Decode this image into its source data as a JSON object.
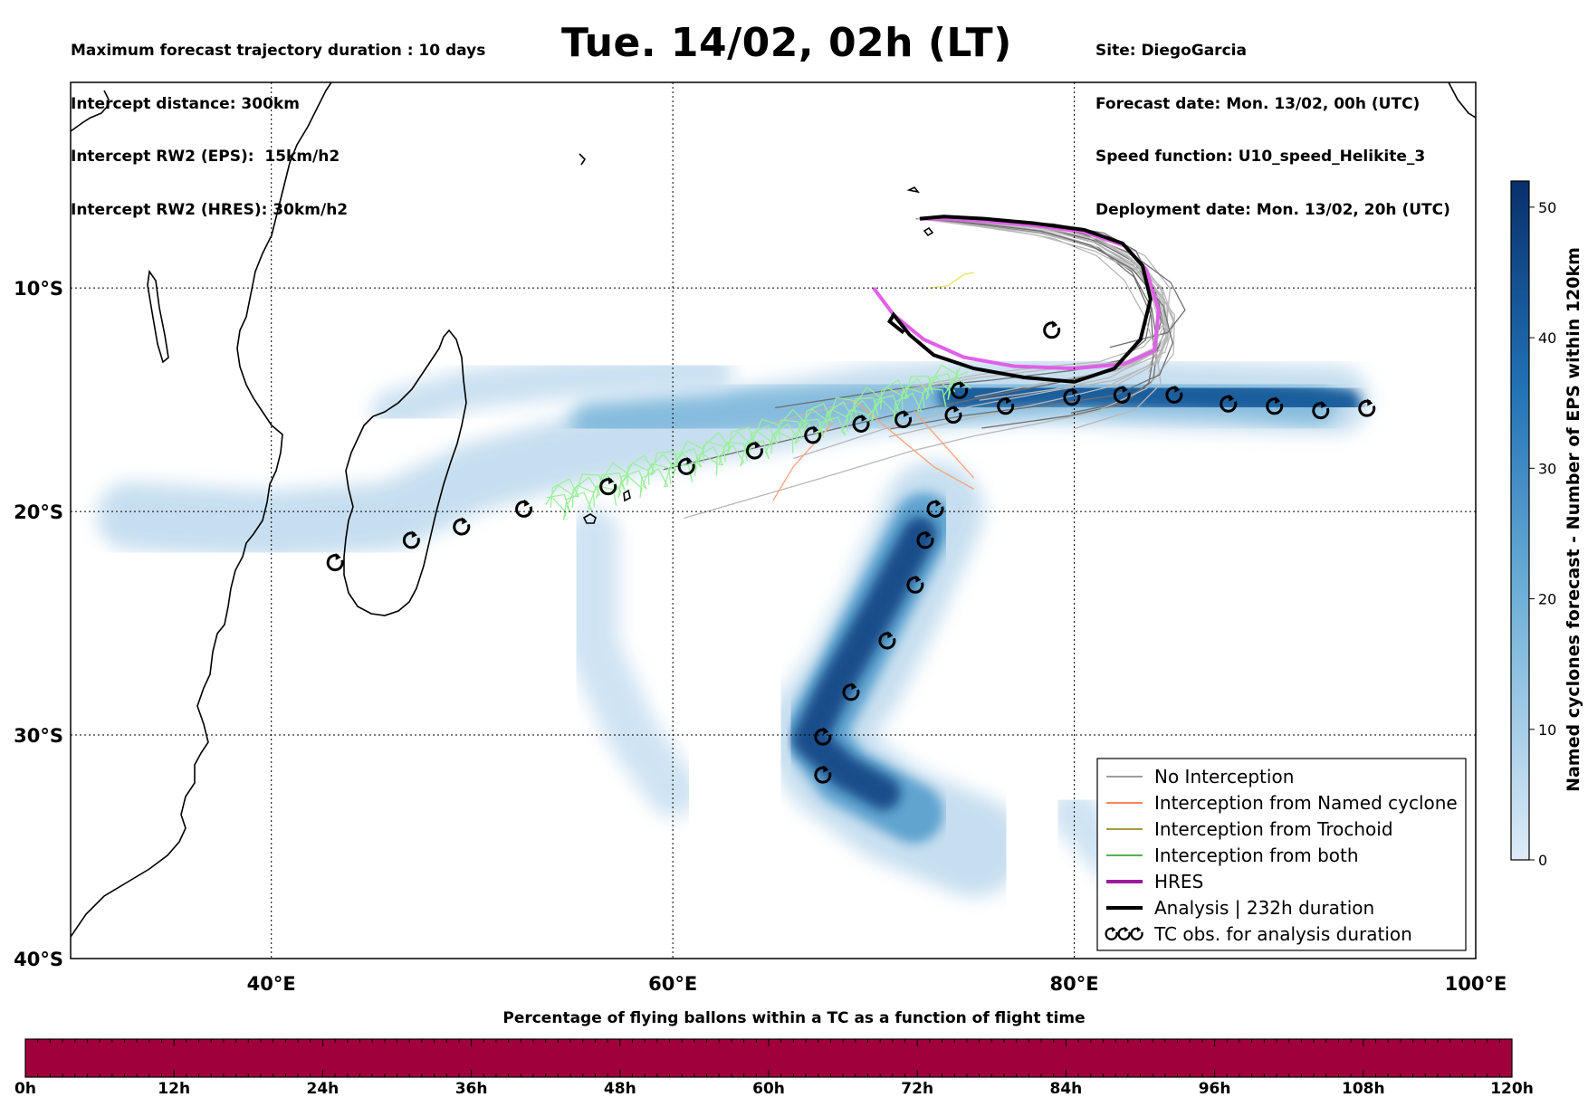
{
  "header": {
    "left_lines": [
      "Maximum forecast trajectory duration : 10 days",
      "Intercept distance: 300km",
      "Intercept RW2 (EPS):  15km/h2",
      "Intercept RW2 (HRES): 30km/h2"
    ],
    "title": "Tue. 14/02, 02h (LT)",
    "right_lines": [
      "Site: DiegoGarcia",
      "Forecast date: Mon. 13/02, 00h (UTC)",
      "Speed function: U10_speed_Helikite_3",
      "Deployment date: Mon. 13/02, 20h (UTC)"
    ]
  },
  "map": {
    "lon_range": [
      30,
      100
    ],
    "lat_range": [
      -40,
      -0.8
    ],
    "lon_ticks": [
      "40°E",
      "60°E",
      "80°E",
      "100°E"
    ],
    "lon_tick_values": [
      40,
      60,
      80,
      100
    ],
    "lat_ticks": [
      "10°S",
      "20°S",
      "30°S",
      "40°S"
    ],
    "lat_tick_values": [
      -10,
      -20,
      -30,
      -40
    ],
    "grid": "dotted"
  },
  "colorbar": {
    "title": "Named cyclones forecast - Number of EPS within 120km",
    "ticks": [
      "0",
      "10",
      "20",
      "30",
      "40",
      "50"
    ],
    "tick_values": [
      0,
      10,
      20,
      30,
      40,
      50
    ],
    "range": [
      0,
      52
    ],
    "color_low": "#deebf7",
    "color_high": "#08306b"
  },
  "legend": {
    "placement": "bottom-right",
    "items": [
      {
        "label": "No Interception",
        "color": "#7f7f7f",
        "style": "thin"
      },
      {
        "label": "Interception from Named cyclone",
        "color": "#ff5a1f",
        "style": "thin"
      },
      {
        "label": "Interception from Trochoid",
        "color": "#8c7b00",
        "style": "thin"
      },
      {
        "label": "Interception from both",
        "color": "#1a9a1a",
        "style": "thin"
      },
      {
        "label": "HRES",
        "color": "#9b1b9b",
        "style": "thick"
      },
      {
        "label": "Analysis | 232h duration",
        "color": "#000000",
        "style": "thick"
      },
      {
        "label": "TC obs. for analysis duration",
        "color": "#000000",
        "style": "cyclone"
      }
    ]
  },
  "tracks": {
    "analysis": [
      [
        71.5,
        -12.0
      ],
      [
        70.8,
        -11.5
      ],
      [
        71.0,
        -11.2
      ],
      [
        71.8,
        -12.1
      ],
      [
        73.0,
        -13.0
      ],
      [
        75.0,
        -13.6
      ],
      [
        77.5,
        -14.0
      ],
      [
        80.0,
        -14.2
      ],
      [
        82.0,
        -13.6
      ],
      [
        83.3,
        -12.3
      ],
      [
        83.8,
        -10.5
      ],
      [
        83.4,
        -9.0
      ],
      [
        82.4,
        -8.0
      ],
      [
        80.5,
        -7.4
      ],
      [
        78.0,
        -7.1
      ],
      [
        75.5,
        -6.9
      ],
      [
        73.5,
        -6.8
      ],
      [
        72.3,
        -6.9
      ]
    ],
    "hres": [
      [
        70.0,
        -10.0
      ],
      [
        71.0,
        -11.2
      ],
      [
        72.5,
        -12.3
      ],
      [
        74.5,
        -13.1
      ],
      [
        77.0,
        -13.5
      ],
      [
        80.0,
        -13.6
      ],
      [
        82.5,
        -13.4
      ],
      [
        84.0,
        -12.8
      ],
      [
        84.2,
        -11.0
      ],
      [
        83.6,
        -9.2
      ],
      [
        82.5,
        -8.1
      ],
      [
        80.5,
        -7.5
      ],
      [
        78.0,
        -7.2
      ],
      [
        75.5,
        -7.0
      ],
      [
        73.5,
        -6.9
      ],
      [
        72.3,
        -6.9
      ]
    ],
    "eps_center": [
      [
        72.3,
        -6.9
      ],
      [
        75.5,
        -7.1
      ],
      [
        78.5,
        -7.4
      ],
      [
        81.0,
        -8.0
      ],
      [
        83.0,
        -9.0
      ],
      [
        84.3,
        -10.5
      ],
      [
        84.6,
        -12.0
      ],
      [
        84.0,
        -13.3
      ],
      [
        82.0,
        -14.2
      ],
      [
        79.0,
        -14.7
      ],
      [
        75.0,
        -15.3
      ],
      [
        71.0,
        -16.0
      ],
      [
        66.0,
        -17.2
      ],
      [
        60.0,
        -18.7
      ],
      [
        54.0,
        -19.8
      ]
    ],
    "tc_observations": [
      [
        43.2,
        -22.3
      ],
      [
        47.0,
        -21.3
      ],
      [
        49.5,
        -20.7
      ],
      [
        52.6,
        -19.9
      ],
      [
        56.8,
        -18.9
      ],
      [
        60.7,
        -18.0
      ],
      [
        64.1,
        -17.3
      ],
      [
        67.0,
        -16.6
      ],
      [
        69.4,
        -16.1
      ],
      [
        71.5,
        -15.9
      ],
      [
        74.0,
        -15.7
      ],
      [
        74.3,
        -14.6
      ],
      [
        76.6,
        -15.3
      ],
      [
        79.9,
        -14.9
      ],
      [
        78.9,
        -11.9
      ],
      [
        82.4,
        -14.8
      ],
      [
        85.0,
        -14.8
      ],
      [
        87.7,
        -15.2
      ],
      [
        90.0,
        -15.3
      ],
      [
        92.3,
        -15.5
      ],
      [
        94.6,
        -15.4
      ],
      [
        73.1,
        -19.9
      ],
      [
        72.6,
        -21.3
      ],
      [
        72.1,
        -23.3
      ],
      [
        70.7,
        -25.8
      ],
      [
        68.9,
        -28.1
      ],
      [
        67.5,
        -30.1
      ],
      [
        67.5,
        -31.8
      ]
    ]
  },
  "density": {
    "blobs": [
      {
        "points": [
          [
            33,
            -20.2
          ],
          [
            40,
            -20.6
          ],
          [
            46,
            -20.2
          ],
          [
            50,
            -18.5
          ],
          [
            55,
            -17.3
          ],
          [
            62,
            -16.2
          ],
          [
            70,
            -15.0
          ],
          [
            78,
            -14.5
          ],
          [
            85,
            -14.8
          ],
          [
            93,
            -15.0
          ]
        ],
        "level": 6,
        "width_deg": 3.4
      },
      {
        "points": [
          [
            56,
            -16.0
          ],
          [
            64,
            -15.5
          ],
          [
            72,
            -15.0
          ],
          [
            80,
            -14.6
          ],
          [
            87,
            -14.8
          ],
          [
            92,
            -15.2
          ]
        ],
        "level": 18,
        "width_deg": 2.2
      },
      {
        "points": [
          [
            74,
            -14.8
          ],
          [
            80,
            -14.6
          ],
          [
            86,
            -14.8
          ],
          [
            91,
            -15.0
          ],
          [
            93.5,
            -15.2
          ]
        ],
        "level": 42,
        "width_deg": 1.6
      },
      {
        "points": [
          [
            73,
            -20
          ],
          [
            71,
            -24
          ],
          [
            69,
            -27.5
          ],
          [
            67,
            -30
          ],
          [
            68,
            -31.5
          ],
          [
            71,
            -33.5
          ],
          [
            75,
            -35
          ]
        ],
        "level": 6,
        "width_deg": 5.0
      },
      {
        "points": [
          [
            72.5,
            -20.5
          ],
          [
            70.5,
            -24
          ],
          [
            68.5,
            -27.5
          ],
          [
            67,
            -30
          ],
          [
            68.5,
            -31.8
          ],
          [
            72,
            -33.5
          ]
        ],
        "level": 24,
        "width_deg": 3.0
      },
      {
        "points": [
          [
            72.3,
            -21
          ],
          [
            70.2,
            -24.5
          ],
          [
            68.0,
            -28
          ],
          [
            66.8,
            -30.2
          ],
          [
            68.5,
            -31.6
          ],
          [
            70.5,
            -32.6
          ]
        ],
        "level": 46,
        "width_deg": 1.7
      },
      {
        "points": [
          [
            56,
            -21
          ],
          [
            56,
            -26
          ],
          [
            58,
            -30
          ],
          [
            60,
            -32.5
          ]
        ],
        "level": 4,
        "width_deg": 2.6
      },
      {
        "points": [
          [
            80,
            -33.5
          ],
          [
            82,
            -35.5
          ],
          [
            84,
            -36.5
          ]
        ],
        "level": 4,
        "width_deg": 2.4
      },
      {
        "points": [
          [
            46,
            -15.5
          ],
          [
            50,
            -14.5
          ],
          [
            55,
            -14.0
          ],
          [
            62,
            -13.8
          ]
        ],
        "level": 5,
        "width_deg": 2.0
      }
    ]
  },
  "bottom_bar": {
    "title": "Percentage of flying ballons within a TC as a function of flight time",
    "fill_color": "#a0003c",
    "ticks": [
      "0h",
      "12h",
      "24h",
      "36h",
      "48h",
      "60h",
      "72h",
      "84h",
      "96h",
      "108h",
      "120h"
    ],
    "tick_values": [
      0,
      12,
      24,
      36,
      48,
      60,
      72,
      84,
      96,
      108,
      120
    ]
  }
}
